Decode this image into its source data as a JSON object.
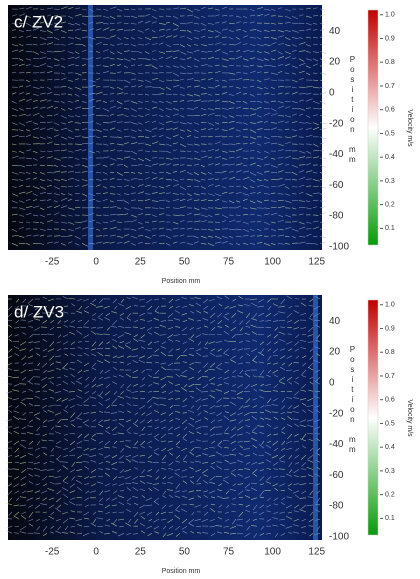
{
  "chart_data": [
    {
      "type": "quiver",
      "title": "c/ ZV2",
      "xlabel": "Position mm",
      "ylabel": "Position mm",
      "xlim": [
        -50,
        128
      ],
      "xticks": [
        -25,
        0,
        25,
        50,
        75,
        100,
        125
      ],
      "ylim": [
        -102,
        57
      ],
      "yticks": [
        40,
        20,
        0,
        -20,
        -40,
        -60,
        -80,
        -100
      ],
      "colorbar": {
        "label": "Velocity m/s",
        "lim": [
          0.03,
          1.02
        ],
        "colors": [
          "#0a9a0a",
          "#ffffff",
          "#c00000"
        ],
        "ticks": [
          {
            "value": 1,
            "label": "1.0"
          },
          0.9,
          0.8,
          0.7,
          0.6,
          0.5,
          0.4,
          0.3,
          0.2,
          0.1
        ]
      }
    },
    {
      "type": "quiver",
      "title": "d/ ZV3",
      "xlabel": "Position mm",
      "ylabel": "Position mm",
      "xlim": [
        -50,
        128
      ],
      "xticks": [
        -25,
        0,
        25,
        50,
        75,
        100,
        125
      ],
      "ylim": [
        -102,
        57
      ],
      "yticks": [
        40,
        20,
        0,
        -20,
        -40,
        -60,
        -80,
        -100
      ],
      "colorbar": {
        "label": "Velocity m/s",
        "lim": [
          0.03,
          1.02
        ],
        "colors": [
          "#0a9a0a",
          "#ffffff",
          "#c00000"
        ],
        "ticks": [
          {
            "value": 1,
            "label": "1.0"
          },
          0.9,
          0.8,
          0.7,
          0.6,
          0.5,
          0.4,
          0.3,
          0.2,
          0.1
        ]
      }
    }
  ]
}
